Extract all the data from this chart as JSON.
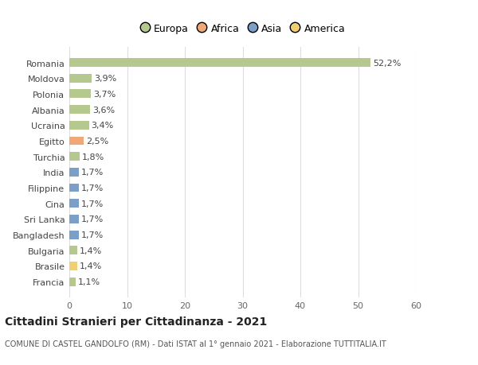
{
  "countries": [
    "Francia",
    "Brasile",
    "Bulgaria",
    "Bangladesh",
    "Sri Lanka",
    "Cina",
    "Filippine",
    "India",
    "Turchia",
    "Egitto",
    "Ucraina",
    "Albania",
    "Polonia",
    "Moldova",
    "Romania"
  ],
  "values": [
    1.1,
    1.4,
    1.4,
    1.7,
    1.7,
    1.7,
    1.7,
    1.7,
    1.8,
    2.5,
    3.4,
    3.6,
    3.7,
    3.9,
    52.2
  ],
  "labels": [
    "1,1%",
    "1,4%",
    "1,4%",
    "1,7%",
    "1,7%",
    "1,7%",
    "1,7%",
    "1,7%",
    "1,8%",
    "2,5%",
    "3,4%",
    "3,6%",
    "3,7%",
    "3,9%",
    "52,2%"
  ],
  "continents": [
    "Europa",
    "America",
    "Europa",
    "Asia",
    "Asia",
    "Asia",
    "Asia",
    "Asia",
    "Europa",
    "Africa",
    "Europa",
    "Europa",
    "Europa",
    "Europa",
    "Europa"
  ],
  "continent_colors": {
    "Europa": "#b5c98e",
    "Africa": "#f0a878",
    "Asia": "#7b9fc7",
    "America": "#f0d070"
  },
  "legend_items": [
    "Europa",
    "Africa",
    "Asia",
    "America"
  ],
  "legend_colors": [
    "#b5c98e",
    "#f0a878",
    "#7b9fc7",
    "#f0d070"
  ],
  "title": "Cittadini Stranieri per Cittadinanza - 2021",
  "subtitle": "COMUNE DI CASTEL GANDOLFO (RM) - Dati ISTAT al 1° gennaio 2021 - Elaborazione TUTTITALIA.IT",
  "xlim": [
    0,
    60
  ],
  "xticks": [
    0,
    10,
    20,
    30,
    40,
    50,
    60
  ],
  "background_color": "#ffffff",
  "grid_color": "#dddddd",
  "bar_height": 0.55,
  "label_fontsize": 8,
  "ytick_fontsize": 8,
  "xtick_fontsize": 8
}
